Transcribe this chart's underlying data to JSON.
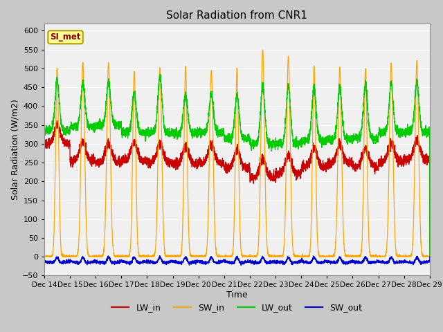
{
  "title": "Solar Radiation from CNR1",
  "xlabel": "Time",
  "ylabel": "Solar Radiation (W/m2)",
  "ylim": [
    -50,
    620
  ],
  "fig_bg_color": "#c8c8c8",
  "plot_bg_color": "#f0f0f0",
  "annotation_text": "SI_met",
  "annotation_bg": "#ffff99",
  "annotation_border": "#b8a000",
  "annotation_text_color": "#880000",
  "colors": {
    "LW_in": "#cc0000",
    "SW_in": "#ffa500",
    "LW_out": "#00cc00",
    "SW_out": "#0000cc"
  },
  "xticklabels": [
    "Dec 14",
    "Dec 15",
    "Dec 16",
    "Dec 17",
    "Dec 18",
    "Dec 19",
    "Dec 20",
    "Dec 21",
    "Dec 22",
    "Dec 23",
    "Dec 24",
    "Dec 25",
    "Dec 26",
    "Dec 27",
    "Dec 28",
    "Dec 29"
  ],
  "n_days": 15,
  "seed": 42
}
